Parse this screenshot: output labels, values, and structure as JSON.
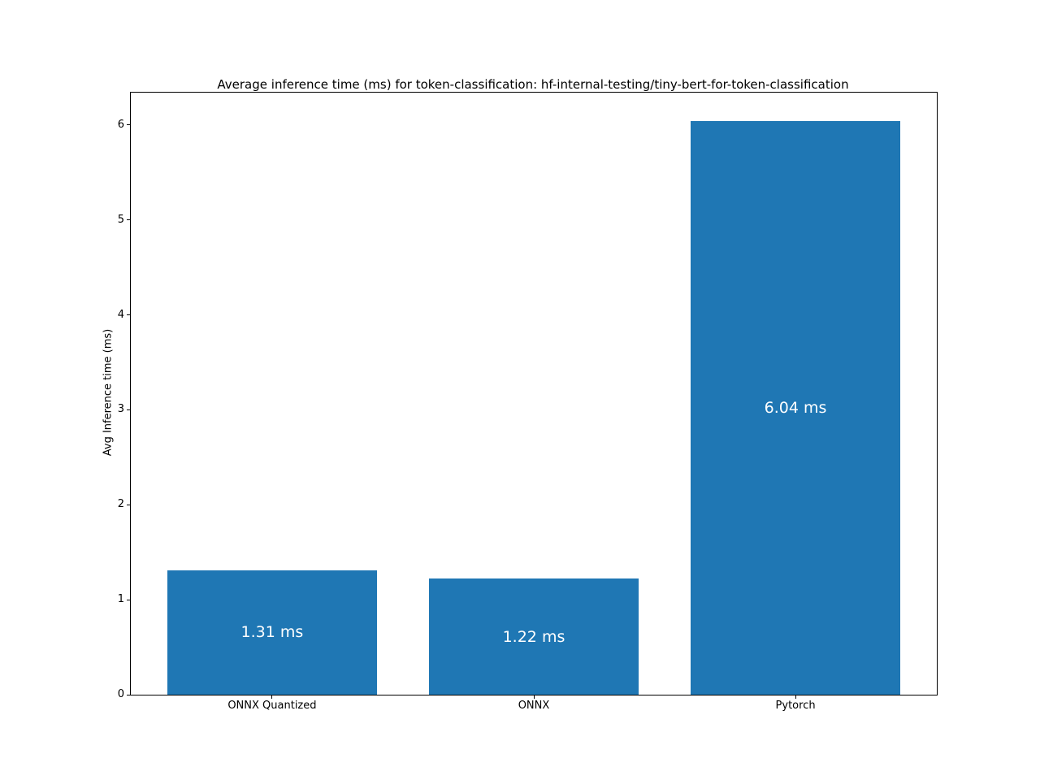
{
  "chart_data": {
    "type": "bar",
    "title": "Average inference time (ms) for token-classification: hf-internal-testing/tiny-bert-for-token-classification",
    "ylabel": "Avg Inference time (ms)",
    "xlabel": "",
    "categories": [
      "ONNX Quantized",
      "ONNX",
      "Pytorch"
    ],
    "values": [
      1.31,
      1.22,
      6.04
    ],
    "bar_labels": [
      "1.31 ms",
      "1.22 ms",
      "6.04 ms"
    ],
    "y_ticks": [
      0,
      1,
      2,
      3,
      4,
      5,
      6
    ],
    "ylim": [
      0,
      6.342
    ],
    "grid": false,
    "legend": "none",
    "bar_color": "#1f77b4",
    "bar_label_color": "#ffffff",
    "text_color": "#000000"
  }
}
